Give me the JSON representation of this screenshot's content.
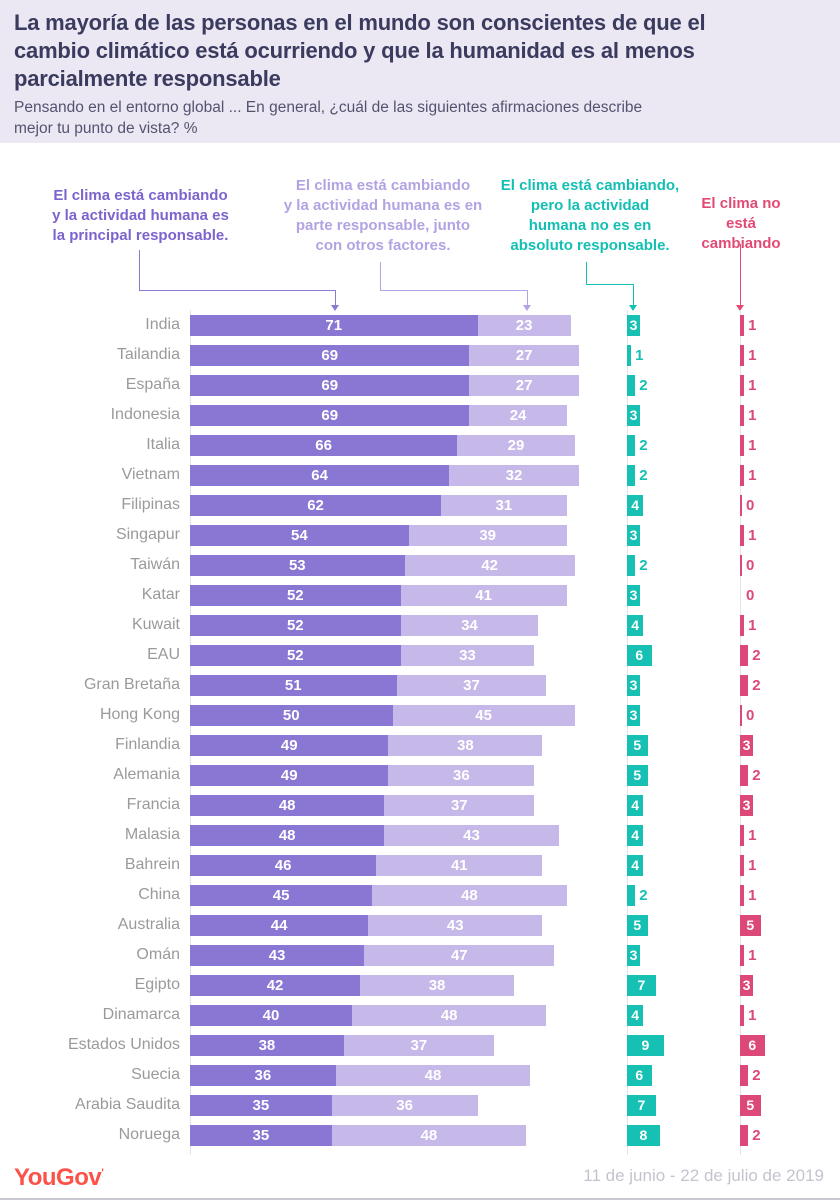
{
  "header": {
    "title": "La mayoría de las personas en el mundo son conscientes de que el\ncambio climático está ocurriendo y que la humanidad es al menos\nparcialmente responsable",
    "subtitle": "Pensando en el entorno global ... En general, ¿cuál de las siguientes afirmaciones describe\nmejor tu punto de vista? %"
  },
  "legend": [
    {
      "text": "El clima está cambiando\ny la actividad humana es\nla principal responsable.",
      "color": "#7c63ce"
    },
    {
      "text": "El clima está cambiando\ny la actividad humana es en\nparte responsable, junto\ncon otros factores.",
      "color": "#b3a3e2"
    },
    {
      "text": "El clima está cambiando,\npero la actividad\nhumana no es en\nabsoluto responsable.",
      "color": "#13bfb4"
    },
    {
      "text": "El clima no\nestá cambiando",
      "color": "#e24a74"
    }
  ],
  "chart_data": {
    "type": "bar",
    "orientation": "horizontal",
    "stacked_pair": true,
    "xlim": [
      0,
      100
    ],
    "unit": "%",
    "categories": [
      "India",
      "Tailandia",
      "España",
      "Indonesia",
      "Italia",
      "Vietnam",
      "Filipinas",
      "Singapur",
      "Taiwán",
      "Katar",
      "Kuwait",
      "EAU",
      "Gran Bretaña",
      "Hong Kong",
      "Finlandia",
      "Alemania",
      "Francia",
      "Malasia",
      "Bahrein",
      "China",
      "Australia",
      "Omán",
      "Egipto",
      "Dinamarca",
      "Estados Unidos",
      "Suecia",
      "Arabia Saudita",
      "Noruega"
    ],
    "series": [
      {
        "name": "El clima está cambiando y la actividad humana es la principal responsable.",
        "color": "#8a76d3",
        "values": [
          71,
          69,
          69,
          69,
          66,
          64,
          62,
          54,
          53,
          52,
          52,
          52,
          51,
          50,
          49,
          49,
          48,
          48,
          46,
          45,
          44,
          43,
          42,
          40,
          38,
          36,
          35,
          35
        ]
      },
      {
        "name": "El clima está cambiando y la actividad humana es en parte responsable, junto con otros factores.",
        "color": "#c6b8e9",
        "values": [
          23,
          27,
          27,
          24,
          29,
          32,
          31,
          39,
          42,
          41,
          34,
          33,
          37,
          45,
          38,
          36,
          37,
          43,
          41,
          48,
          43,
          47,
          38,
          48,
          37,
          48,
          36,
          48
        ]
      },
      {
        "name": "El clima está cambiando, pero la actividad humana no es en absoluto responsable.",
        "color": "#16c0b3",
        "values": [
          3,
          1,
          2,
          3,
          2,
          2,
          4,
          3,
          2,
          3,
          4,
          6,
          3,
          3,
          5,
          5,
          4,
          4,
          4,
          2,
          5,
          3,
          7,
          4,
          9,
          6,
          7,
          8
        ]
      },
      {
        "name": "El clima no está cambiando",
        "color": "#dc4877",
        "values": [
          1,
          1,
          1,
          1,
          1,
          1,
          0,
          1,
          0,
          0,
          1,
          2,
          2,
          0,
          3,
          2,
          3,
          1,
          1,
          1,
          5,
          1,
          3,
          1,
          6,
          2,
          5,
          2
        ]
      }
    ],
    "zero_tick_exception": "Katar"
  },
  "footer": {
    "logo": "YouGov",
    "logo_mark": "'",
    "date_range": "11 de junio - 22 de julio de 2019"
  }
}
